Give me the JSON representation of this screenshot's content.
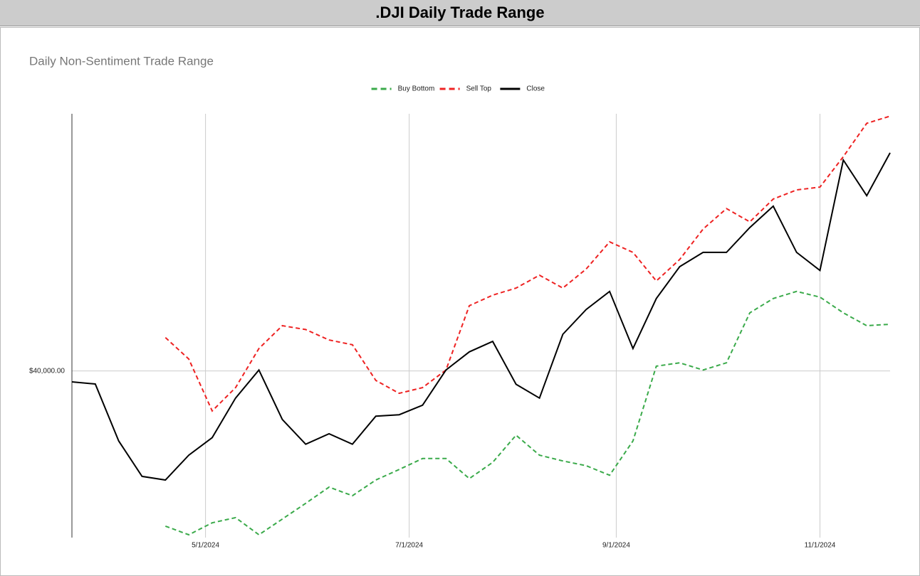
{
  "header": {
    "title": ".DJI Daily Trade Range"
  },
  "chart_data": {
    "type": "line",
    "title": "Daily Non-Sentiment Trade Range",
    "x": [
      "2024-03-22",
      "2024-03-29",
      "2024-04-05",
      "2024-04-12",
      "2024-04-19",
      "2024-04-26",
      "2024-05-03",
      "2024-05-10",
      "2024-05-17",
      "2024-05-24",
      "2024-05-31",
      "2024-06-07",
      "2024-06-14",
      "2024-06-21",
      "2024-06-28",
      "2024-07-05",
      "2024-07-12",
      "2024-07-19",
      "2024-07-26",
      "2024-08-02",
      "2024-08-09",
      "2024-08-16",
      "2024-08-23",
      "2024-08-30",
      "2024-09-06",
      "2024-09-13",
      "2024-09-20",
      "2024-09-27",
      "2024-10-04",
      "2024-10-11",
      "2024-10-18",
      "2024-10-25",
      "2024-11-01",
      "2024-11-08",
      "2024-11-15",
      "2024-11-22"
    ],
    "series": [
      {
        "name": "Buy Bottom",
        "color": "#3aaa4a",
        "dashed": true,
        "values": [
          null,
          null,
          null,
          null,
          36740,
          36560,
          36810,
          36920,
          36560,
          36890,
          37220,
          37560,
          37380,
          37710,
          37930,
          38160,
          38160,
          37740,
          38080,
          38650,
          38230,
          38110,
          38010,
          37810,
          38530,
          40100,
          40170,
          40020,
          40170,
          41220,
          41520,
          41670,
          41550,
          41220,
          40950,
          40980
        ]
      },
      {
        "name": "Sell Top",
        "color": "#ee2222",
        "dashed": true,
        "values": [
          null,
          null,
          null,
          null,
          40700,
          40250,
          39160,
          39650,
          40470,
          40950,
          40870,
          40650,
          40550,
          39800,
          39530,
          39650,
          40020,
          41370,
          41590,
          41740,
          42010,
          41740,
          42140,
          42710,
          42490,
          41890,
          42340,
          42980,
          43410,
          43130,
          43610,
          43800,
          43860,
          44500,
          45200,
          45350
        ]
      },
      {
        "name": "Close",
        "color": "#000000",
        "dashed": false,
        "values": [
          39770,
          39725,
          38530,
          37785,
          37710,
          38230,
          38600,
          39430,
          40020,
          38980,
          38460,
          38680,
          38460,
          39050,
          39080,
          39280,
          40020,
          40400,
          40620,
          39720,
          39430,
          40770,
          41290,
          41670,
          40470,
          41520,
          42190,
          42490,
          42490,
          43010,
          43460,
          42490,
          42110,
          44430,
          43680,
          44580
        ]
      }
    ],
    "xlim": [
      "2024-03-22",
      "2024-11-22"
    ],
    "xticks": [
      {
        "value": "2024-05-01",
        "label": "5/1/2024"
      },
      {
        "value": "2024-07-01",
        "label": "7/1/2024"
      },
      {
        "value": "2024-09-01",
        "label": "9/1/2024"
      },
      {
        "value": "2024-11-01",
        "label": "11/1/2024"
      }
    ],
    "ylim": [
      36500,
      45400
    ],
    "yticks": [
      {
        "value": 40000,
        "label": "$40,000.00"
      }
    ],
    "grid": true,
    "legend": "top"
  }
}
